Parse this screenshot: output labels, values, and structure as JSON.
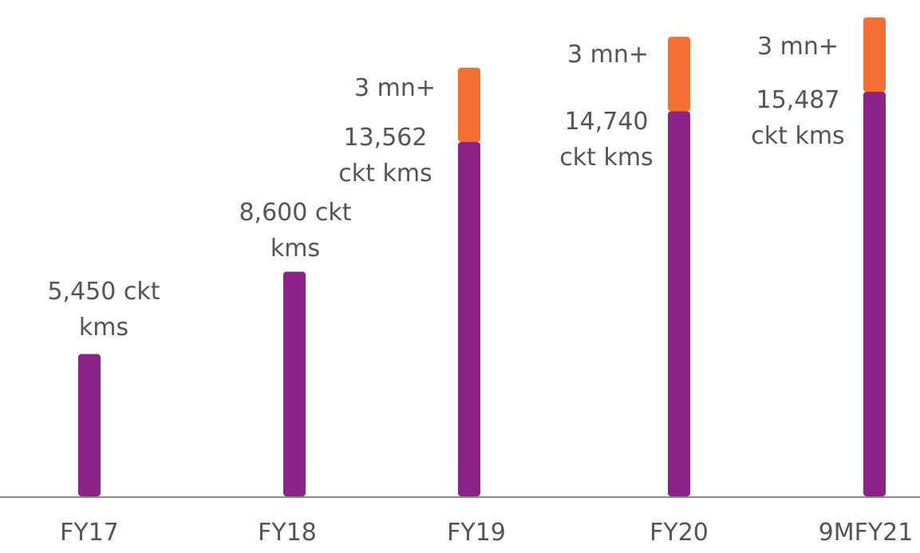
{
  "chart_data": {
    "type": "bar",
    "stacked": true,
    "categories": [
      "FY17",
      "FY18",
      "FY19",
      "FY20",
      "9MFY21"
    ],
    "series": [
      {
        "color": "#8b2389",
        "values": [
          5450,
          8600,
          13562,
          14740,
          15487
        ],
        "value_labels": [
          "5,450 ckt kms",
          "8,600 ckt kms",
          "13,562 ckt kms",
          "14,740 ckt kms",
          "15,487 ckt kms"
        ]
      },
      {
        "color": "#f37032",
        "axis": "y2",
        "values": [
          null,
          null,
          3,
          3,
          3
        ],
        "value_labels": [
          null,
          null,
          "3 mn+",
          "3 mn+",
          "3 mn+"
        ]
      }
    ],
    "ylim": [
      0,
      19000
    ],
    "y2lim": [
      0,
      20
    ]
  }
}
